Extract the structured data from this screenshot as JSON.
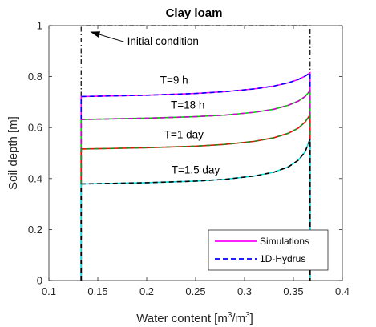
{
  "chart_data": {
    "type": "line",
    "title": "Clay loam",
    "xlabel": "Water content [m",
    "xlabel_sup1": "3",
    "xlabel_mid": "/m",
    "xlabel_sup2": "3",
    "xlabel_end": "]",
    "ylabel": "Soil depth [m]",
    "xlim": [
      0.1,
      0.4
    ],
    "ylim": [
      0,
      1
    ],
    "xticks": [
      0.1,
      0.15,
      0.2,
      0.25,
      0.3,
      0.35,
      0.4
    ],
    "xtick_labels": [
      "0.1",
      "0.15",
      "0.2",
      "0.25",
      "0.3",
      "0.35",
      "0.4"
    ],
    "yticks": [
      0,
      0.2,
      0.4,
      0.6,
      0.8,
      1
    ],
    "ytick_labels": [
      "0",
      "0.2",
      "0.4",
      "0.6",
      "0.8",
      "1"
    ],
    "grid": false,
    "legend_position": "bottom-right",
    "theta_r": 0.133,
    "theta_s": 0.367,
    "initial_condition": {
      "label": "Initial condition",
      "x": [
        0.133,
        0.133,
        0.367,
        0.367
      ],
      "y": [
        0,
        1,
        1,
        0
      ],
      "arrow_to": [
        0.143,
        0.975
      ]
    },
    "profiles": [
      {
        "label": "T=9 h",
        "front_depth": 0.72,
        "top_depth": 0.815,
        "x": [
          0.133,
          0.15,
          0.2,
          0.25,
          0.28,
          0.31,
          0.33,
          0.345,
          0.355,
          0.362,
          0.367
        ],
        "y": [
          0.722,
          0.723,
          0.727,
          0.734,
          0.741,
          0.752,
          0.763,
          0.776,
          0.789,
          0.802,
          0.815
        ],
        "sim_color": "#ff00ff",
        "ref_color": "#0000ff"
      },
      {
        "label": "T=18 h",
        "front_depth": 0.63,
        "top_depth": 0.745,
        "x": [
          0.133,
          0.15,
          0.2,
          0.25,
          0.28,
          0.31,
          0.33,
          0.345,
          0.355,
          0.362,
          0.367
        ],
        "y": [
          0.632,
          0.633,
          0.637,
          0.643,
          0.649,
          0.66,
          0.672,
          0.688,
          0.704,
          0.722,
          0.745
        ],
        "sim_color": "#00cc00",
        "ref_color": "#cc00cc"
      },
      {
        "label": "T=1 day",
        "front_depth": 0.515,
        "top_depth": 0.65,
        "x": [
          0.133,
          0.15,
          0.2,
          0.25,
          0.28,
          0.31,
          0.33,
          0.345,
          0.355,
          0.362,
          0.367
        ],
        "y": [
          0.516,
          0.517,
          0.521,
          0.527,
          0.534,
          0.546,
          0.56,
          0.578,
          0.598,
          0.622,
          0.65
        ],
        "sim_color": "#ff0000",
        "ref_color": "#228b22"
      },
      {
        "label": "T=1.5 day",
        "front_depth": 0.378,
        "top_depth": 0.555,
        "x": [
          0.133,
          0.15,
          0.2,
          0.25,
          0.28,
          0.31,
          0.33,
          0.345,
          0.355,
          0.362,
          0.367
        ],
        "y": [
          0.379,
          0.38,
          0.384,
          0.39,
          0.397,
          0.41,
          0.425,
          0.446,
          0.472,
          0.505,
          0.555
        ],
        "sim_color": "#00e0e0",
        "ref_color": "#000000"
      }
    ],
    "legend": [
      {
        "label": "Simulations",
        "color": "#ff00ff",
        "style": "solid"
      },
      {
        "label": "1D-Hydrus",
        "color": "#0000ff",
        "style": "dashed"
      }
    ]
  }
}
